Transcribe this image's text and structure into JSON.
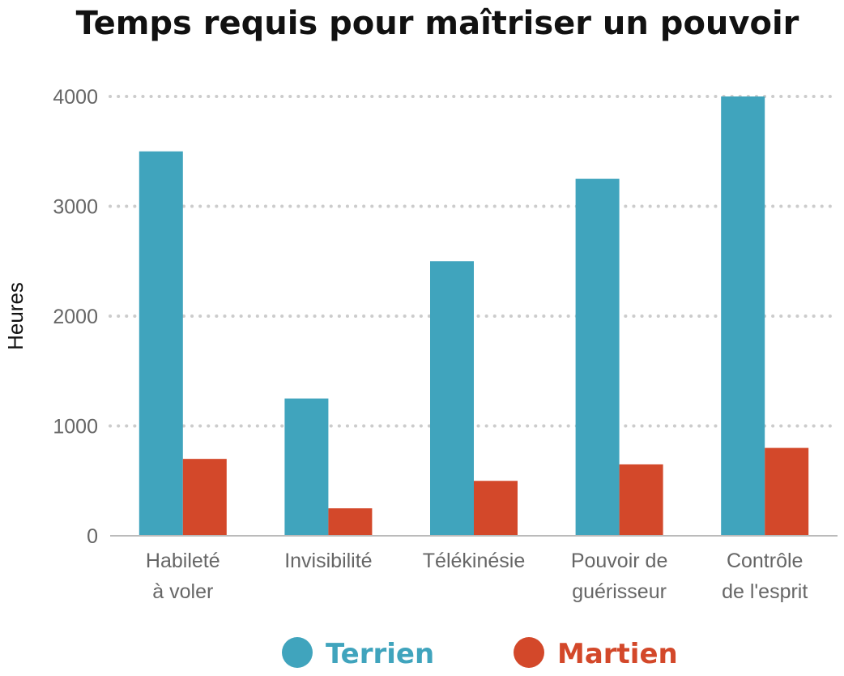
{
  "chart_data": {
    "type": "bar",
    "title": "Temps requis pour maîtriser un pouvoir",
    "xlabel": "",
    "ylabel": "Heures",
    "ylim": [
      0,
      4000
    ],
    "yticks": [
      "0",
      "1000",
      "2000",
      "3000",
      "4000"
    ],
    "grid": true,
    "legend_position": "bottom",
    "categories": [
      [
        "Habileté",
        "à voler"
      ],
      [
        "Invisibilité"
      ],
      [
        "Télékinésie"
      ],
      [
        "Pouvoir de",
        "guérisseur"
      ],
      [
        "Contrôle",
        "de l'esprit"
      ]
    ],
    "series": [
      {
        "name": "Terrien",
        "color": "#40a4bd",
        "values": [
          3500,
          1250,
          2500,
          3250,
          4000
        ]
      },
      {
        "name": "Martien",
        "color": "#d3482a",
        "values": [
          700,
          250,
          500,
          650,
          800
        ]
      }
    ]
  }
}
